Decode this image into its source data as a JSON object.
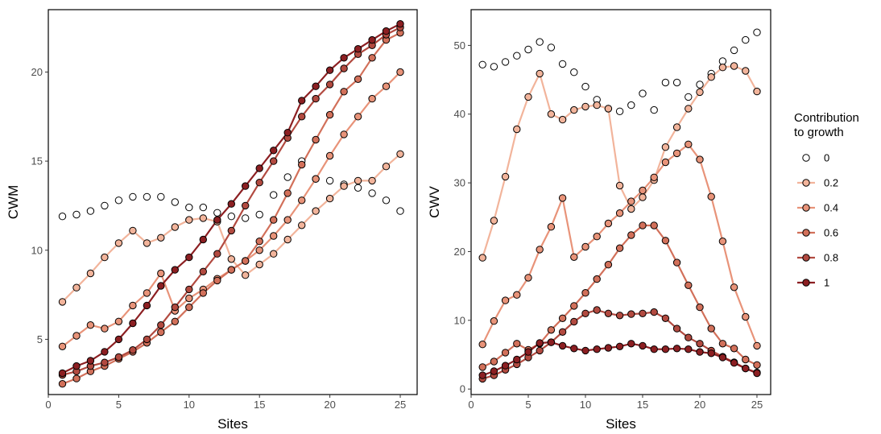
{
  "chart_data": [
    {
      "type": "line",
      "xlabel": "Sites",
      "ylabel": "CWM",
      "xlim": [
        0,
        26.2
      ],
      "ylim": [
        1.9,
        23.5
      ],
      "xticks": [
        0,
        5,
        10,
        15,
        20,
        25
      ],
      "yticks": [
        5,
        10,
        15,
        20
      ],
      "grid": false,
      "series": [
        {
          "name": "0",
          "color": "#ffffff",
          "values": [
            11.9,
            12.0,
            12.2,
            12.5,
            12.8,
            13.0,
            13.0,
            13.0,
            12.7,
            12.4,
            12.4,
            12.1,
            11.9,
            11.8,
            12.0,
            13.1,
            14.1,
            15.0,
            14.0,
            13.9,
            13.7,
            13.5,
            13.2,
            12.8,
            12.2
          ]
        },
        {
          "name": "0.2",
          "color": "#f2b49b",
          "values": [
            7.1,
            7.9,
            8.7,
            9.6,
            10.4,
            11.1,
            10.4,
            10.7,
            11.3,
            11.7,
            11.8,
            11.6,
            9.5,
            8.6,
            9.2,
            9.8,
            10.6,
            11.4,
            12.2,
            12.9,
            13.6,
            13.9,
            13.9,
            14.7,
            15.4
          ]
        },
        {
          "name": "0.4",
          "color": "#e89379",
          "values": [
            4.6,
            5.2,
            5.8,
            5.6,
            6.0,
            6.9,
            7.6,
            8.7,
            6.6,
            7.3,
            7.8,
            8.4,
            8.9,
            9.4,
            10.0,
            10.8,
            11.7,
            12.8,
            14.0,
            15.3,
            16.5,
            17.5,
            18.5,
            19.2,
            20.0
          ]
        },
        {
          "name": "0.6",
          "color": "#d2705a",
          "values": [
            2.5,
            2.8,
            3.2,
            3.5,
            3.9,
            4.3,
            4.8,
            5.4,
            6.0,
            6.8,
            7.6,
            8.3,
            8.9,
            9.4,
            10.5,
            11.7,
            13.2,
            14.8,
            16.2,
            17.6,
            18.9,
            19.6,
            20.8,
            21.8,
            22.2
          ]
        },
        {
          "name": "0.8",
          "color": "#b24a40",
          "values": [
            3.0,
            3.2,
            3.5,
            3.7,
            4.0,
            4.4,
            5.0,
            5.8,
            6.8,
            7.8,
            8.8,
            9.8,
            11.1,
            12.5,
            13.8,
            15.0,
            16.3,
            17.5,
            18.5,
            19.3,
            20.2,
            21.0,
            21.5,
            22.1,
            22.5
          ]
        },
        {
          "name": "1",
          "color": "#8c1f22",
          "values": [
            3.1,
            3.5,
            3.8,
            4.3,
            5.0,
            5.9,
            6.9,
            8.0,
            8.9,
            9.6,
            10.6,
            11.7,
            12.6,
            13.6,
            14.6,
            15.6,
            16.6,
            18.4,
            19.2,
            20.1,
            20.8,
            21.3,
            21.8,
            22.3,
            22.7
          ]
        }
      ]
    },
    {
      "type": "line",
      "xlabel": "Sites",
      "ylabel": "CWV",
      "xlim": [
        0,
        26.2
      ],
      "ylim": [
        -0.8,
        55.2
      ],
      "xticks": [
        0,
        5,
        10,
        15,
        20,
        25
      ],
      "yticks": [
        0,
        10,
        20,
        30,
        40,
        50
      ],
      "grid": false,
      "series": [
        {
          "name": "0",
          "color": "#ffffff",
          "values": [
            47.2,
            46.9,
            47.6,
            48.5,
            49.4,
            50.5,
            49.7,
            47.3,
            46.1,
            44.0,
            42.1,
            40.8,
            40.4,
            41.3,
            43.0,
            40.6,
            44.6,
            44.6,
            42.5,
            44.3,
            45.9,
            47.7,
            49.3,
            50.8,
            51.9
          ]
        },
        {
          "name": "0.2",
          "color": "#f2b49b",
          "values": [
            19.1,
            24.5,
            30.9,
            37.8,
            42.5,
            45.9,
            40.0,
            39.2,
            40.6,
            41.1,
            41.3,
            40.8,
            29.6,
            26.2,
            27.9,
            30.4,
            35.2,
            38.1,
            40.8,
            43.2,
            45.4,
            46.8,
            47.0,
            46.3,
            43.3
          ]
        },
        {
          "name": "0.4",
          "color": "#e89379",
          "values": [
            6.5,
            9.9,
            12.9,
            13.7,
            16.2,
            20.3,
            23.6,
            27.8,
            19.2,
            20.7,
            22.2,
            24.1,
            25.6,
            27.3,
            28.9,
            30.8,
            33.0,
            34.3,
            35.6,
            33.4,
            28.0,
            21.5,
            14.8,
            10.5,
            6.3
          ]
        },
        {
          "name": "0.6",
          "color": "#d2705a",
          "values": [
            3.2,
            4.0,
            5.3,
            6.6,
            5.7,
            6.6,
            8.6,
            10.3,
            12.1,
            14.0,
            16.0,
            18.1,
            20.5,
            22.4,
            23.8,
            23.8,
            21.6,
            18.4,
            15.1,
            11.9,
            8.8,
            6.6,
            5.9,
            4.3,
            3.5
          ]
        },
        {
          "name": "0.8",
          "color": "#b24a40",
          "values": [
            1.5,
            2.0,
            2.8,
            3.6,
            4.6,
            5.6,
            6.8,
            8.3,
            9.8,
            11.0,
            11.5,
            11.0,
            10.7,
            10.9,
            11.0,
            11.2,
            10.3,
            8.8,
            7.5,
            6.6,
            5.6,
            4.7,
            3.9,
            3.0,
            2.4
          ]
        },
        {
          "name": "1",
          "color": "#8c1f22",
          "values": [
            2.0,
            2.6,
            3.4,
            4.3,
            5.4,
            6.7,
            6.8,
            6.3,
            5.9,
            5.6,
            5.8,
            6.0,
            6.2,
            6.6,
            6.3,
            5.8,
            5.8,
            5.9,
            5.8,
            5.4,
            5.2,
            4.6,
            3.8,
            3.0,
            2.3
          ]
        }
      ]
    }
  ],
  "legend": {
    "title_line1": "Contribution",
    "title_line2": "to growth",
    "placement": "right"
  }
}
